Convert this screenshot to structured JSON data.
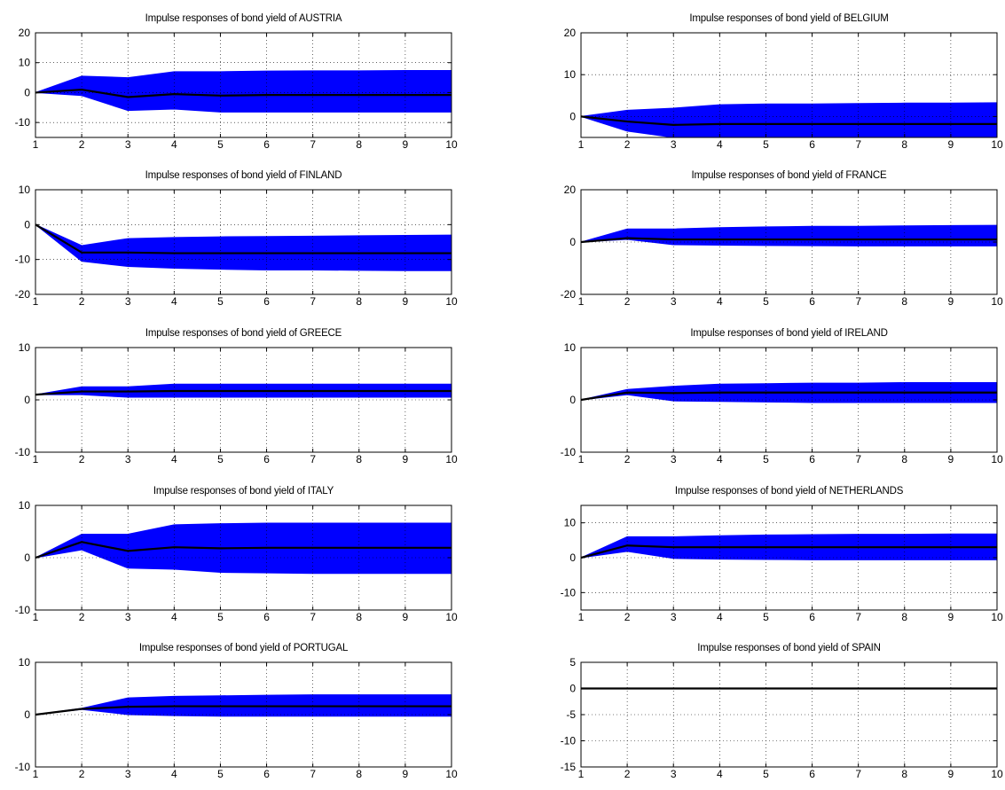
{
  "chart_data": [
    {
      "type": "area",
      "title": "Impulse responses of bond yield of AUSTRIA",
      "x": [
        1,
        2,
        3,
        4,
        5,
        6,
        7,
        8,
        9,
        10
      ],
      "ylim": [
        -15,
        20
      ],
      "yticks": [
        -10,
        0,
        10,
        20
      ],
      "series": [
        {
          "role": "upper",
          "values": [
            0,
            5.5,
            5,
            7,
            7,
            7.2,
            7.3,
            7.3,
            7.4,
            7.4
          ]
        },
        {
          "role": "lower",
          "values": [
            0,
            -1,
            -6,
            -5.5,
            -6.5,
            -6.5,
            -6.5,
            -6.5,
            -6.5,
            -6.5
          ]
        },
        {
          "role": "median",
          "values": [
            0,
            1,
            -1.5,
            -0.5,
            -1,
            -0.8,
            -0.8,
            -0.8,
            -0.8,
            -0.8
          ]
        }
      ]
    },
    {
      "type": "area",
      "title": "Impulse responses of bond yield of BELGIUM",
      "x": [
        1,
        2,
        3,
        4,
        5,
        6,
        7,
        8,
        9,
        10
      ],
      "ylim": [
        -5,
        20
      ],
      "yticks": [
        0,
        10,
        20
      ],
      "series": [
        {
          "role": "upper",
          "values": [
            0,
            1.5,
            2,
            2.8,
            3,
            3,
            3.1,
            3.2,
            3.2,
            3.3
          ]
        },
        {
          "role": "lower",
          "values": [
            0,
            -3.5,
            -5,
            -5,
            -5,
            -5,
            -5,
            -5,
            -5,
            -5
          ]
        },
        {
          "role": "median",
          "values": [
            0,
            -1.2,
            -2,
            -1.8,
            -1.8,
            -1.8,
            -1.8,
            -1.8,
            -1.8,
            -1.8
          ]
        }
      ]
    },
    {
      "type": "area",
      "title": "Impulse responses of bond yield of FINLAND",
      "x": [
        1,
        2,
        3,
        4,
        5,
        6,
        7,
        8,
        9,
        10
      ],
      "ylim": [
        -20,
        10
      ],
      "yticks": [
        -20,
        -10,
        0,
        10
      ],
      "series": [
        {
          "role": "upper",
          "values": [
            0,
            -6,
            -4,
            -3.7,
            -3.5,
            -3.4,
            -3.3,
            -3.2,
            -3.1,
            -3
          ]
        },
        {
          "role": "lower",
          "values": [
            0,
            -10.5,
            -12,
            -12.5,
            -12.8,
            -13,
            -13,
            -13.1,
            -13.2,
            -13.2
          ]
        },
        {
          "role": "median",
          "values": [
            0,
            -8,
            -8,
            -8.2,
            -8.2,
            -8.2,
            -8.2,
            -8.2,
            -8.2,
            -8.2
          ]
        }
      ]
    },
    {
      "type": "area",
      "title": "Impulse responses of bond yield of FRANCE",
      "x": [
        1,
        2,
        3,
        4,
        5,
        6,
        7,
        8,
        9,
        10
      ],
      "ylim": [
        -20,
        20
      ],
      "yticks": [
        -20,
        0,
        20
      ],
      "series": [
        {
          "role": "upper",
          "values": [
            0,
            5,
            5,
            5.5,
            5.8,
            6,
            6,
            6.2,
            6.3,
            6.4
          ]
        },
        {
          "role": "lower",
          "values": [
            0,
            1,
            -1,
            -1.2,
            -1.3,
            -1.4,
            -1.5,
            -1.5,
            -1.5,
            -1.5
          ]
        },
        {
          "role": "median",
          "values": [
            0,
            1.5,
            1,
            1,
            1,
            1,
            1,
            1,
            1,
            1
          ]
        }
      ]
    },
    {
      "type": "area",
      "title": "Impulse responses of bond yield of GREECE",
      "x": [
        1,
        2,
        3,
        4,
        5,
        6,
        7,
        8,
        9,
        10
      ],
      "ylim": [
        -10,
        10
      ],
      "yticks": [
        -10,
        0,
        10
      ],
      "series": [
        {
          "role": "upper",
          "values": [
            1,
            2.5,
            2.5,
            3,
            3,
            3,
            3,
            3,
            3,
            3
          ]
        },
        {
          "role": "lower",
          "values": [
            1,
            1,
            0.5,
            0.5,
            0.5,
            0.5,
            0.5,
            0.5,
            0.5,
            0.5
          ]
        },
        {
          "role": "median",
          "values": [
            1,
            1.6,
            1.6,
            1.7,
            1.7,
            1.7,
            1.7,
            1.7,
            1.7,
            1.7
          ]
        }
      ]
    },
    {
      "type": "area",
      "title": "Impulse responses of bond yield of IRELAND",
      "x": [
        1,
        2,
        3,
        4,
        5,
        6,
        7,
        8,
        9,
        10
      ],
      "ylim": [
        -10,
        10
      ],
      "yticks": [
        -10,
        0,
        10
      ],
      "series": [
        {
          "role": "upper",
          "values": [
            0,
            2,
            2.6,
            3,
            3.1,
            3.2,
            3.2,
            3.3,
            3.3,
            3.3
          ]
        },
        {
          "role": "lower",
          "values": [
            0,
            1,
            -0.2,
            -0.3,
            -0.4,
            -0.5,
            -0.5,
            -0.5,
            -0.5,
            -0.5
          ]
        },
        {
          "role": "median",
          "values": [
            0,
            1.4,
            1.3,
            1.4,
            1.4,
            1.4,
            1.4,
            1.4,
            1.4,
            1.4
          ]
        }
      ]
    },
    {
      "type": "area",
      "title": "Impulse responses of bond yield of ITALY",
      "x": [
        1,
        2,
        3,
        4,
        5,
        6,
        7,
        8,
        9,
        10
      ],
      "ylim": [
        -10,
        10
      ],
      "yticks": [
        -10,
        0,
        10
      ],
      "series": [
        {
          "role": "upper",
          "values": [
            0,
            4.5,
            4.5,
            6.3,
            6.5,
            6.6,
            6.6,
            6.6,
            6.6,
            6.6
          ]
        },
        {
          "role": "lower",
          "values": [
            0,
            1.5,
            -2,
            -2.2,
            -2.8,
            -2.9,
            -3,
            -3,
            -3,
            -3
          ]
        },
        {
          "role": "median",
          "values": [
            0,
            3,
            1.3,
            2,
            1.8,
            1.9,
            1.9,
            1.9,
            1.9,
            1.9
          ]
        }
      ]
    },
    {
      "type": "area",
      "title": "Impulse responses of bond yield of NETHERLANDS",
      "x": [
        1,
        2,
        3,
        4,
        5,
        6,
        7,
        8,
        9,
        10
      ],
      "ylim": [
        -15,
        15
      ],
      "yticks": [
        -10,
        0,
        10
      ],
      "series": [
        {
          "role": "upper",
          "values": [
            0,
            6,
            6,
            6.3,
            6.5,
            6.6,
            6.7,
            6.7,
            6.8,
            6.8
          ]
        },
        {
          "role": "lower",
          "values": [
            0,
            1.8,
            -0.2,
            -0.4,
            -0.5,
            -0.6,
            -0.6,
            -0.6,
            -0.6,
            -0.6
          ]
        },
        {
          "role": "median",
          "values": [
            0,
            3.5,
            3,
            3,
            3,
            3,
            3,
            3,
            3,
            3
          ]
        }
      ]
    },
    {
      "type": "area",
      "title": "Impulse responses of bond yield of PORTUGAL",
      "x": [
        1,
        2,
        3,
        4,
        5,
        6,
        7,
        8,
        9,
        10
      ],
      "ylim": [
        -10,
        10
      ],
      "yticks": [
        -10,
        0,
        10
      ],
      "series": [
        {
          "role": "upper",
          "values": [
            0,
            1.2,
            3.2,
            3.5,
            3.6,
            3.7,
            3.8,
            3.8,
            3.8,
            3.8
          ]
        },
        {
          "role": "lower",
          "values": [
            0,
            1,
            0,
            -0.2,
            -0.3,
            -0.3,
            -0.3,
            -0.3,
            -0.3,
            -0.3
          ]
        },
        {
          "role": "median",
          "values": [
            0,
            1.1,
            1.5,
            1.6,
            1.6,
            1.6,
            1.6,
            1.6,
            1.6,
            1.6
          ]
        }
      ]
    },
    {
      "type": "area",
      "title": "Impulse responses of bond yield of SPAIN",
      "x": [
        1,
        2,
        3,
        4,
        5,
        6,
        7,
        8,
        9,
        10
      ],
      "ylim": [
        -15,
        5
      ],
      "yticks": [
        -15,
        -10,
        -5,
        0,
        5
      ],
      "series": [
        {
          "role": "upper",
          "values": [
            0,
            0.05,
            0.05,
            0.05,
            0.05,
            0.05,
            0.05,
            0.05,
            0.05,
            0.05
          ]
        },
        {
          "role": "lower",
          "values": [
            0,
            -0.05,
            -0.05,
            -0.05,
            -0.05,
            -0.05,
            -0.05,
            -0.05,
            -0.05,
            -0.05
          ]
        },
        {
          "role": "median",
          "values": [
            0,
            0,
            0,
            0,
            0,
            0,
            0,
            0,
            0,
            0
          ]
        }
      ]
    }
  ],
  "style": {
    "band_color": "#0000ff",
    "line_color": "#000000",
    "grid": "dotted",
    "axis_color": "#000000"
  }
}
